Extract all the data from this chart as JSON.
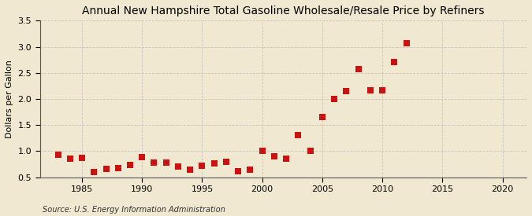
{
  "title": "Annual New Hampshire Total Gasoline Wholesale/Resale Price by Refiners",
  "ylabel": "Dollars per Gallon",
  "source": "Source: U.S. Energy Information Administration",
  "background_color": "#f0e8d0",
  "plot_bg_color": "#f0e8d0",
  "years": [
    1983,
    1984,
    1985,
    1986,
    1987,
    1988,
    1989,
    1990,
    1991,
    1992,
    1993,
    1994,
    1995,
    1996,
    1997,
    1998,
    1999,
    2000,
    2001,
    2002,
    2003,
    2004,
    2005,
    2006,
    2007,
    2008,
    2009,
    2010,
    2011,
    2012
  ],
  "values": [
    0.93,
    0.85,
    0.87,
    0.6,
    0.66,
    0.68,
    0.73,
    0.89,
    0.78,
    0.78,
    0.7,
    0.65,
    0.72,
    0.76,
    0.79,
    0.61,
    0.65,
    1.0,
    0.9,
    0.86,
    1.3,
    1.01,
    1.65,
    2.0,
    2.15,
    2.57,
    2.17,
    2.17,
    2.7,
    3.07
  ],
  "marker_color": "#cc1111",
  "marker_size": 28,
  "xlim": [
    1981.5,
    2022
  ],
  "ylim": [
    0.5,
    3.5
  ],
  "xticks": [
    1985,
    1990,
    1995,
    2000,
    2005,
    2010,
    2015,
    2020
  ],
  "yticks": [
    0.5,
    1.0,
    1.5,
    2.0,
    2.5,
    3.0,
    3.5
  ],
  "ytick_labels": [
    "0.5",
    "1.0",
    "1.5",
    "2.0",
    "2.5",
    "3.0",
    "3.5"
  ],
  "grid_color": "#bbbbbb",
  "title_fontsize": 10,
  "ylabel_fontsize": 8,
  "tick_fontsize": 8,
  "source_fontsize": 7
}
